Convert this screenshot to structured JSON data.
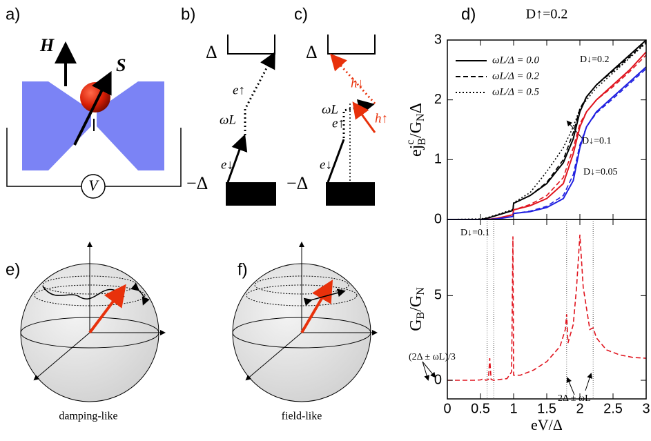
{
  "panels": {
    "a": {
      "label": "a)",
      "field": "H",
      "spin": "S",
      "voltage": "V"
    },
    "b": {
      "label": "b)",
      "gap_top": "Δ",
      "gap_bottom": "−Δ",
      "e_up": "e↑",
      "omega": "ωL",
      "e_down": "e↓"
    },
    "c": {
      "label": "c)",
      "gap_top": "Δ",
      "gap_bottom": "−Δ",
      "e_up": "e↑",
      "omega": "ωL",
      "e_down": "e↓",
      "h_down": "h↓",
      "h_up": "h↑"
    },
    "d": {
      "label": "d)"
    },
    "e": {
      "label": "e)",
      "caption": "damping-like"
    },
    "f": {
      "label": "f)",
      "caption": "field-like"
    }
  },
  "chart_data": [
    {
      "type": "line",
      "title": "D↑=0.2",
      "ylabel": [
        "ej",
        "c",
        "B",
        "/G",
        "N",
        "Δ"
      ],
      "xlim": [
        0,
        3
      ],
      "ylim": [
        0,
        3
      ],
      "yticks": [
        0,
        1,
        2,
        3
      ],
      "legend": "upper left",
      "x": [
        0,
        0.5,
        0.6,
        0.75,
        0.99,
        1,
        1.25,
        1.5,
        1.75,
        1.9,
        2,
        2.1,
        2.25,
        2.5,
        2.75,
        3
      ],
      "series": [
        {
          "name": "ωL/Δ = 0.0",
          "color": "#000000",
          "dash": "solid",
          "values": [
            0,
            0,
            0.02,
            0.07,
            0.15,
            0.27,
            0.4,
            0.6,
            0.95,
            1.35,
            1.8,
            2.05,
            2.25,
            2.5,
            2.75,
            3
          ]
        },
        {
          "name": "ωL/Δ = 0.2",
          "color": "#000000",
          "dash": "dashed",
          "values": [
            0,
            0,
            0.02,
            0.07,
            0.15,
            0.27,
            0.4,
            0.62,
            1.0,
            1.45,
            1.85,
            2.05,
            2.25,
            2.48,
            2.72,
            2.97
          ]
        },
        {
          "name": "ωL/Δ = 0.5",
          "color": "#000000",
          "dash": "dotted",
          "values": [
            0,
            0.01,
            0.03,
            0.08,
            0.17,
            0.28,
            0.45,
            0.8,
            1.2,
            1.55,
            1.85,
            2.0,
            2.2,
            2.45,
            2.7,
            2.95
          ]
        },
        {
          "color": "#e0141e",
          "dash": "solid",
          "values": [
            0,
            0,
            0,
            0.02,
            0.08,
            0.16,
            0.23,
            0.35,
            0.6,
            1.1,
            1.55,
            1.8,
            2.0,
            2.25,
            2.5,
            2.8
          ]
        },
        {
          "color": "#e0141e",
          "dash": "dashed",
          "values": [
            0,
            0,
            0,
            0.02,
            0.08,
            0.16,
            0.25,
            0.4,
            0.7,
            1.2,
            1.6,
            1.8,
            2.0,
            2.22,
            2.47,
            2.75
          ]
        },
        {
          "color": "#1f1fe0",
          "dash": "solid",
          "values": [
            0,
            0,
            0,
            0.01,
            0.05,
            0.1,
            0.13,
            0.2,
            0.35,
            0.65,
            1.2,
            1.55,
            1.8,
            2.05,
            2.3,
            2.55
          ]
        },
        {
          "color": "#1f1fe0",
          "dash": "dashed",
          "values": [
            0,
            0,
            0,
            0.01,
            0.05,
            0.1,
            0.14,
            0.22,
            0.4,
            0.75,
            1.25,
            1.55,
            1.78,
            2.02,
            2.27,
            2.52
          ]
        }
      ],
      "annotations": [
        "D↓=0.2",
        "D↓=0.1",
        "D↓=0.05"
      ]
    },
    {
      "type": "line",
      "ylabel": [
        "G",
        "B",
        "/G",
        "N"
      ],
      "xlabel": "eV/Δ",
      "xlim": [
        0,
        3
      ],
      "xticks": [
        0,
        0.5,
        1,
        1.5,
        2,
        2.5,
        3
      ],
      "ylim": [
        -1.1,
        9.5
      ],
      "yticks": [
        0,
        5
      ],
      "x": [
        0,
        0.4,
        0.5,
        0.55,
        0.58,
        0.62,
        0.64,
        0.66,
        0.7,
        0.9,
        0.97,
        0.99,
        1.0,
        1.1,
        1.3,
        1.5,
        1.7,
        1.78,
        1.8,
        1.82,
        1.9,
        1.95,
        2.0,
        2.05,
        2.15,
        2.2,
        2.25,
        2.4,
        2.6,
        2.8,
        3
      ],
      "series": [
        {
          "color": "#e0141e",
          "dash": "dashed",
          "values": [
            0,
            0,
            0.02,
            0.1,
            0,
            0.05,
            1.3,
            0.05,
            0,
            0.1,
            0.5,
            8.5,
            0.3,
            0.3,
            0.6,
            1.1,
            2.0,
            3.0,
            3.9,
            2.2,
            3.3,
            5.5,
            8.6,
            5.5,
            3.0,
            3.1,
            2.5,
            1.8,
            1.5,
            1.35,
            1.3
          ]
        }
      ],
      "vlines": [
        0.6,
        0.7,
        1.8,
        2.2
      ],
      "annotations": [
        "D↓=0.1",
        "(2Δ ± ωL)/3",
        "2Δ ± ωL"
      ]
    }
  ]
}
